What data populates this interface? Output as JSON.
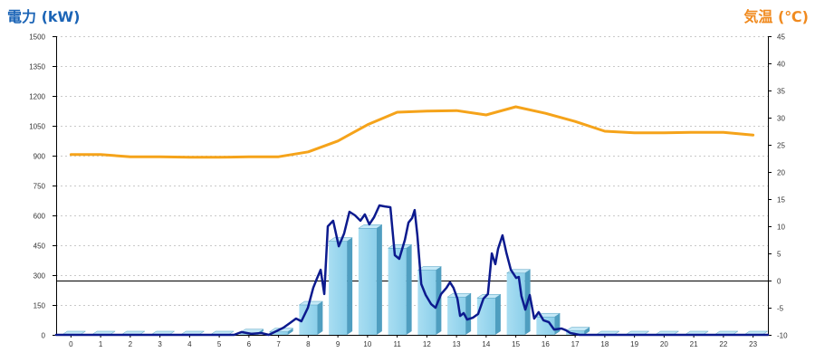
{
  "chart_data": {
    "type": "bar",
    "categories": [
      "0",
      "1",
      "2",
      "3",
      "4",
      "5",
      "6",
      "7",
      "8",
      "9",
      "10",
      "11",
      "12",
      "13",
      "14",
      "15",
      "16",
      "17",
      "18",
      "19",
      "20",
      "21",
      "22",
      "23"
    ],
    "left_axis": {
      "label": "電力 (kW)",
      "ylim": [
        0,
        1500
      ],
      "ticks": [
        0,
        150,
        300,
        450,
        600,
        750,
        900,
        1050,
        1200,
        1350,
        1500
      ]
    },
    "right_axis": {
      "label": "気温 (℃)",
      "ylim": [
        -10,
        45
      ],
      "ticks": [
        -10,
        -5,
        0,
        5,
        10,
        15,
        20,
        25,
        30,
        35,
        40,
        45
      ]
    },
    "grid": true,
    "reference_line": {
      "axis": "right",
      "value": 0
    },
    "series": [
      {
        "type": "bar",
        "axis": "left",
        "values": [
          0,
          0,
          0,
          0,
          0,
          0,
          10,
          15,
          150,
          470,
          535,
          435,
          325,
          190,
          185,
          310,
          90,
          20,
          0,
          0,
          0,
          0,
          0,
          0
        ],
        "color": "#8ccfea"
      },
      {
        "type": "line",
        "axis": "left",
        "x": [
          0,
          6.0,
          6.25,
          6.58,
          6.92,
          7.17,
          7.42,
          7.66,
          7.88,
          8.09,
          8.27,
          8.49,
          8.67,
          8.79,
          8.92,
          9.04,
          9.16,
          9.34,
          9.53,
          9.71,
          9.89,
          10.08,
          10.26,
          10.41,
          10.56,
          10.72,
          10.9,
          11.08,
          11.27,
          11.42,
          11.57,
          11.76,
          11.88,
          12.0,
          12.09,
          12.18,
          12.31,
          12.46,
          12.64,
          12.79,
          12.98,
          13.16,
          13.28,
          13.4,
          13.53,
          13.62,
          13.74,
          13.86,
          14.05,
          14.23,
          14.41,
          14.56,
          14.69,
          14.81,
          14.9,
          15.05,
          15.18,
          15.33,
          15.51,
          15.6,
          15.69,
          15.82,
          15.97,
          16.12,
          16.27,
          16.43,
          16.61,
          16.79,
          17.04,
          17.19,
          17.34,
          17.65,
          24
        ],
        "y": [
          0,
          0,
          14,
          5,
          9,
          0,
          18,
          36,
          59,
          82,
          68,
          136,
          236,
          282,
          327,
          205,
          545,
          573,
          445,
          509,
          618,
          600,
          573,
          605,
          555,
          591,
          650,
          645,
          641,
          400,
          382,
          477,
          564,
          586,
          627,
          500,
          255,
          200,
          155,
          136,
          205,
          236,
          264,
          236,
          182,
          95,
          109,
          77,
          86,
          105,
          182,
          205,
          409,
          355,
          432,
          500,
          414,
          327,
          286,
          291,
          195,
          127,
          200,
          82,
          114,
          73,
          64,
          27,
          32,
          23,
          9,
          0,
          0
        ],
        "color": "#0c1a8e"
      },
      {
        "type": "line",
        "axis": "right",
        "values": [
          23.2,
          23.2,
          22.8,
          22.8,
          22.7,
          22.7,
          22.8,
          22.8,
          23.7,
          25.7,
          28.7,
          31.0,
          31.2,
          31.3,
          30.5,
          32.0,
          30.8,
          29.3,
          27.5,
          27.2,
          27.2,
          27.3,
          27.3,
          26.8
        ],
        "color": "#f5a31a"
      }
    ]
  },
  "colors": {
    "left_title": "#1b64b6",
    "right_title": "#f08a1f",
    "grid": "#c9c9c9",
    "axis": "#000000",
    "bar_front_light": "#a9def2",
    "bar_side": "#4f9ec0",
    "bar_top": "#c4e8f6"
  }
}
